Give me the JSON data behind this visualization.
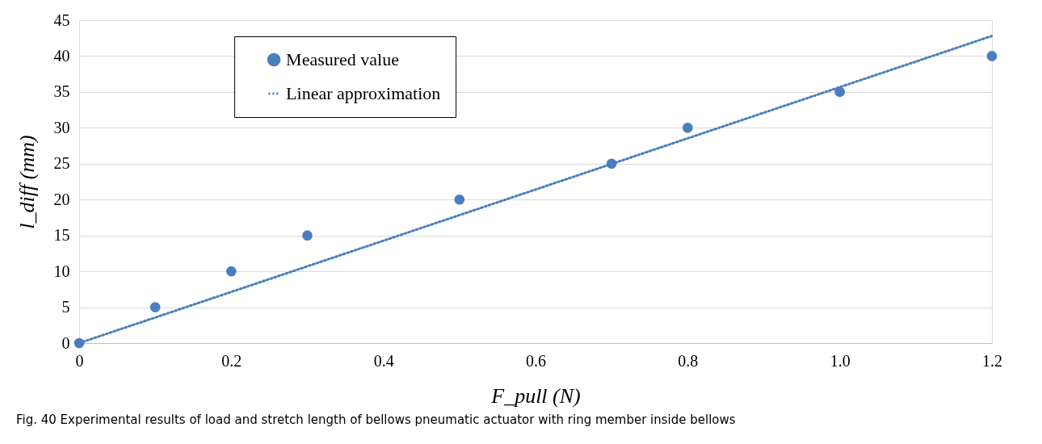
{
  "chart_data": {
    "type": "scatter",
    "xlabel": "F_pull  (N)",
    "ylabel": "l_diff  (mm)",
    "annotations": [
      "Fig. 40  Experimental results of load and stretch length of bellows pneumatic actuator with ring member inside bellows"
    ],
    "series": [
      {
        "name": "Measured value",
        "type": "scatter",
        "marker": "circle",
        "color": "#4a7ebf",
        "x": [
          0,
          0.1,
          0.2,
          0.3,
          0.5,
          0.7,
          0.8,
          1.0,
          1.2
        ],
        "values": [
          0,
          5,
          10,
          15,
          20,
          25,
          30,
          35,
          40
        ]
      },
      {
        "name": "Linear approximation",
        "type": "line",
        "marker": "none",
        "line_style": "dotted",
        "color": "#4a7ebf",
        "x": [
          0,
          1.2
        ],
        "values": [
          0,
          42.8
        ]
      }
    ],
    "xlim": [
      0,
      1.2
    ],
    "xticks": [
      0,
      0.2,
      0.4,
      0.6,
      0.8,
      {
        "value": 1.0,
        "label": "1.0"
      },
      1.2
    ],
    "ylim": [
      0,
      45
    ],
    "yticks": [
      0,
      5,
      10,
      15,
      20,
      25,
      30,
      35,
      40,
      45
    ],
    "grid": "y",
    "legend": "top left"
  }
}
